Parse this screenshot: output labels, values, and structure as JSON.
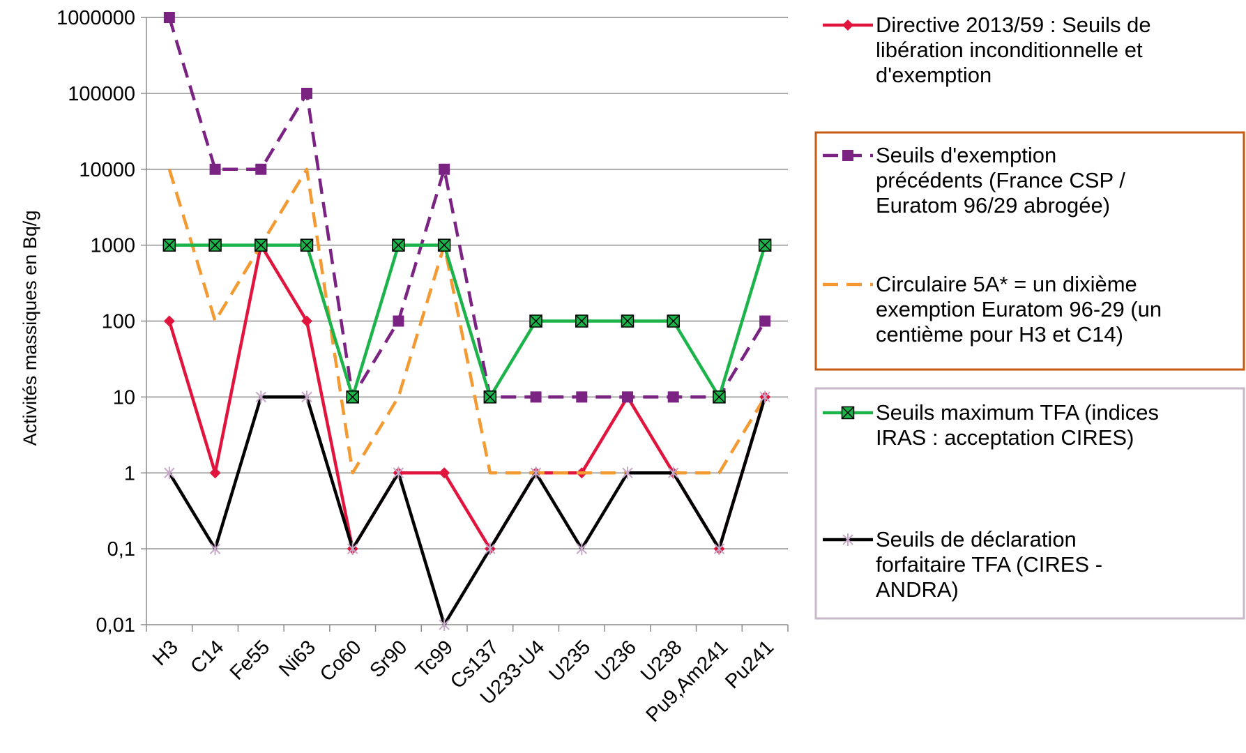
{
  "chart_data": {
    "type": "line",
    "ylabel": "Activités massiques en Bq/g",
    "xlabel": "",
    "yscale": "log",
    "ylim": [
      0.01,
      1000000
    ],
    "grid": true,
    "legend_position": "right",
    "yticks": [
      {
        "value": 0.01,
        "label": "0,01"
      },
      {
        "value": 0.1,
        "label": "0,1"
      },
      {
        "value": 1,
        "label": "1"
      },
      {
        "value": 10,
        "label": "10"
      },
      {
        "value": 100,
        "label": "100"
      },
      {
        "value": 1000,
        "label": "1000"
      },
      {
        "value": 10000,
        "label": "10000"
      },
      {
        "value": 100000,
        "label": "100000"
      },
      {
        "value": 1000000,
        "label": "1000000"
      }
    ],
    "categories": [
      "H3",
      "C14",
      "Fe55",
      "Ni63",
      "Co60",
      "Sr90",
      "Tc99",
      "Cs137",
      "U233-U4",
      "U235",
      "U236",
      "U238",
      "Pu9,Am241",
      "Pu241"
    ],
    "series": [
      {
        "name": "Directive 2013/59 : Seuils de libération inconditionnelle et d'exemption",
        "legend_lines": [
          "Directive 2013/59 : Seuils de",
          "libération inconditionnelle et",
          "d'exemption"
        ],
        "color": "#e0143c",
        "dash": "solid",
        "marker": "diamond",
        "values": [
          100,
          1,
          1000,
          100,
          0.1,
          1,
          1,
          0.1,
          1,
          1,
          10,
          1,
          0.1,
          10
        ]
      },
      {
        "name": "Seuils d'exemption précédents (France CSP / Euratom 96/29 abrogée)",
        "legend_lines": [
          "Seuils d'exemption",
          "précédents (France CSP /",
          "Euratom 96/29 abrogée)"
        ],
        "color": "#7b2383",
        "dash": "dashed",
        "marker": "square",
        "values": [
          1000000,
          10000,
          10000,
          100000,
          10,
          100,
          10000,
          10,
          10,
          10,
          10,
          10,
          10,
          100
        ]
      },
      {
        "name": "Circulaire 5A* = un dixième exemption Euratom 96-29 (un centième pour H3 et C14)",
        "legend_lines": [
          "Circulaire 5A* = un dixième",
          "exemption Euratom 96-29 (un",
          "centième pour H3 et C14)"
        ],
        "color": "#f39a32",
        "dash": "dashed",
        "marker": "none",
        "values": [
          10000,
          100,
          1000,
          10000,
          1,
          10,
          1000,
          1,
          1,
          1,
          1,
          1,
          1,
          10
        ]
      },
      {
        "name": "Seuils maximum TFA (indices IRAS : acceptation CIRES)",
        "legend_lines": [
          "Seuils maximum TFA (indices",
          "IRAS : acceptation CIRES)"
        ],
        "color": "#1bb34a",
        "dash": "solid",
        "marker": "boxed-x",
        "values": [
          1000,
          1000,
          1000,
          1000,
          10,
          1000,
          1000,
          10,
          100,
          100,
          100,
          100,
          10,
          1000
        ]
      },
      {
        "name": "Seuils de déclaration forfaitaire TFA (CIRES - ANDRA)",
        "legend_lines": [
          "Seuils de déclaration",
          "forfaitaire TFA (CIRES -",
          "ANDRA)"
        ],
        "color": "#000000",
        "dash": "solid",
        "marker": "star",
        "values": [
          1,
          0.1,
          10,
          10,
          0.1,
          1,
          0.01,
          0.1,
          1,
          0.1,
          1,
          1,
          0.1,
          10
        ]
      }
    ],
    "legend_boxes": [
      {
        "color": "#c55a11",
        "series": [
          1,
          2
        ]
      },
      {
        "color": "#c9b8c9",
        "series": [
          3,
          4
        ]
      }
    ]
  }
}
